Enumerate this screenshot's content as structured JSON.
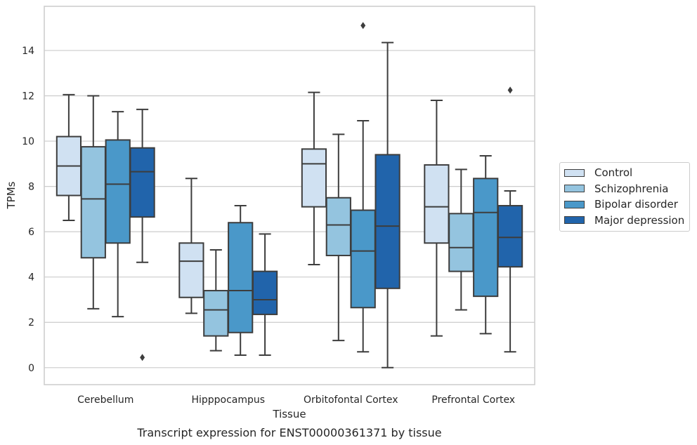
{
  "chart_data": {
    "type": "box",
    "xlabel": "Tissue",
    "ylabel": "TPMs",
    "caption": "Transcript expression for ENST00000361371 by tissue",
    "ylim": [
      -0.75,
      15.95
    ],
    "yticks": [
      0,
      2,
      4,
      6,
      8,
      10,
      12,
      14
    ],
    "grid": "horizontal",
    "legend_position": "right",
    "categories": [
      "Cerebellum",
      "Hipppocampus",
      "Orbitofontal Cortex",
      "Prefrontal Cortex"
    ],
    "series": [
      {
        "name": "Control",
        "color": "#d0e1f2",
        "boxes": [
          {
            "whislo": 6.5,
            "q1": 7.6,
            "med": 8.9,
            "q3": 10.2,
            "whishi": 12.05,
            "fliers": []
          },
          {
            "whislo": 2.4,
            "q1": 3.1,
            "med": 4.7,
            "q3": 5.5,
            "whishi": 8.35,
            "fliers": []
          },
          {
            "whislo": 4.55,
            "q1": 7.1,
            "med": 9.0,
            "q3": 9.65,
            "whishi": 12.15,
            "fliers": []
          },
          {
            "whislo": 1.4,
            "q1": 5.5,
            "med": 7.1,
            "q3": 8.95,
            "whishi": 11.8,
            "fliers": []
          }
        ]
      },
      {
        "name": "Schizophrenia",
        "color": "#94c4df",
        "boxes": [
          {
            "whislo": 2.6,
            "q1": 4.85,
            "med": 7.45,
            "q3": 9.75,
            "whishi": 12.0,
            "fliers": []
          },
          {
            "whislo": 0.75,
            "q1": 1.4,
            "med": 2.55,
            "q3": 3.4,
            "whishi": 5.2,
            "fliers": []
          },
          {
            "whislo": 1.2,
            "q1": 4.95,
            "med": 6.3,
            "q3": 7.5,
            "whishi": 10.3,
            "fliers": []
          },
          {
            "whislo": 2.55,
            "q1": 4.25,
            "med": 5.3,
            "q3": 6.8,
            "whishi": 8.75,
            "fliers": []
          }
        ]
      },
      {
        "name": "Bipolar disorder",
        "color": "#4a98c9",
        "boxes": [
          {
            "whislo": 2.25,
            "q1": 5.5,
            "med": 8.1,
            "q3": 10.05,
            "whishi": 11.3,
            "fliers": []
          },
          {
            "whislo": 0.55,
            "q1": 1.55,
            "med": 3.4,
            "q3": 6.4,
            "whishi": 7.15,
            "fliers": []
          },
          {
            "whislo": 0.7,
            "q1": 2.65,
            "med": 5.15,
            "q3": 6.95,
            "whishi": 10.9,
            "fliers": [
              15.1
            ]
          },
          {
            "whislo": 1.5,
            "q1": 3.15,
            "med": 6.85,
            "q3": 8.35,
            "whishi": 9.35,
            "fliers": []
          }
        ]
      },
      {
        "name": "Major depression",
        "color": "#2164ab",
        "boxes": [
          {
            "whislo": 4.65,
            "q1": 6.65,
            "med": 8.65,
            "q3": 9.7,
            "whishi": 11.4,
            "fliers": [
              0.45
            ]
          },
          {
            "whislo": 0.55,
            "q1": 2.35,
            "med": 3.0,
            "q3": 4.25,
            "whishi": 5.9,
            "fliers": []
          },
          {
            "whislo": 0.0,
            "q1": 3.5,
            "med": 6.25,
            "q3": 9.4,
            "whishi": 14.35,
            "fliers": []
          },
          {
            "whislo": 0.7,
            "q1": 4.45,
            "med": 5.75,
            "q3": 7.15,
            "whishi": 7.8,
            "fliers": [
              12.25
            ]
          }
        ]
      }
    ]
  }
}
